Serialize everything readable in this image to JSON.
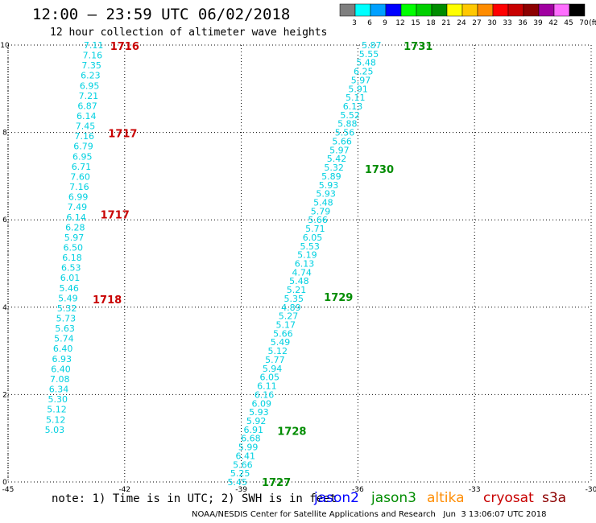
{
  "header": {
    "title": "12:00 — 23:59 UTC 06/02/2018",
    "subtitle": "12 hour collection of altimeter wave heights"
  },
  "colorbar": {
    "bins": [
      {
        "label": "3",
        "color": "#7f7f7f"
      },
      {
        "label": "6",
        "color": "#00ffff"
      },
      {
        "label": "9",
        "color": "#00a0ff"
      },
      {
        "label": "12",
        "color": "#0000ff"
      },
      {
        "label": "15",
        "color": "#00ff00"
      },
      {
        "label": "18",
        "color": "#00d000"
      },
      {
        "label": "21",
        "color": "#008c00"
      },
      {
        "label": "24",
        "color": "#ffff00"
      },
      {
        "label": "27",
        "color": "#ffc800"
      },
      {
        "label": "30",
        "color": "#ff8c00"
      },
      {
        "label": "33",
        "color": "#ff0000"
      },
      {
        "label": "36",
        "color": "#c80000"
      },
      {
        "label": "39",
        "color": "#8c0000"
      },
      {
        "label": "42",
        "color": "#a000a0"
      },
      {
        "label": "45",
        "color": "#ff6eff"
      },
      {
        "label": "70",
        "color": "#000000"
      }
    ],
    "unit": "(ft)"
  },
  "note": "note: 1) Time is in UTC; 2) SWH is in feet",
  "missions": [
    {
      "name": "jason2",
      "color": "#0000ff"
    },
    {
      "name": "jason3",
      "color": "#008c00"
    },
    {
      "name": "altika",
      "color": "#ff8c00"
    },
    {
      "name": "cryosat",
      "color": "#c80000"
    },
    {
      "name": "s3a",
      "color": "#8c0000"
    }
  ],
  "credit": "NOAA/NESDIS Center for Satellite Applications and Research   Jun  3 13:06:07 UTC 2018",
  "chart_data": {
    "type": "scatter",
    "xlim": [
      -45,
      -30
    ],
    "ylim": [
      0,
      10
    ],
    "x_ticks": [
      "-45",
      "-42",
      "-39",
      "-36",
      "-33",
      "-30"
    ],
    "y_ticks": [
      "0",
      "2",
      "4",
      "6",
      "8",
      "10"
    ],
    "grid": true,
    "label_color": "#00d0e0",
    "tracks": [
      {
        "id": "cryosat-track",
        "mission": "cryosat",
        "start": {
          "lon": -42.8,
          "lat": 10.0
        },
        "end": {
          "lon": -43.8,
          "lat": 1.2
        },
        "values": [
          "7.11",
          "7.16",
          "7.35",
          "6.23",
          "6.95",
          "7.21",
          "6.87",
          "6.14",
          "7.45",
          "7.16",
          "6.79",
          "6.95",
          "6.71",
          "7.60",
          "7.16",
          "6.99",
          "7.49",
          "6.14",
          "6.28",
          "5.97",
          "6.50",
          "6.18",
          "6.53",
          "6.01",
          "5.46",
          "5.49",
          "5.32",
          "5.73",
          "5.63",
          "5.74",
          "6.40",
          "6.93",
          "6.40",
          "7.08",
          "6.34",
          "5.30",
          "5.12",
          "5.12",
          "5.03"
        ],
        "times": [
          {
            "text": "1716",
            "lon": -42.0,
            "lat": 9.98
          },
          {
            "text": "1717",
            "lon": -42.05,
            "lat": 7.98
          },
          {
            "text": "1717",
            "lon": -42.25,
            "lat": 6.12
          },
          {
            "text": "1718",
            "lon": -42.45,
            "lat": 4.18
          }
        ]
      },
      {
        "id": "jason3-track",
        "mission": "jason3",
        "start": {
          "lon": -35.65,
          "lat": 10.0
        },
        "end": {
          "lon": -39.1,
          "lat": 0.0
        },
        "values": [
          "5.87",
          "5.55",
          "5.48",
          "6.25",
          "5.97",
          "5.91",
          "5.11",
          "6.13",
          "5.52",
          "5.88",
          "5.56",
          "5.66",
          "5.97",
          "5.42",
          "5.32",
          "5.89",
          "5.93",
          "5.93",
          "5.48",
          "5.79",
          "5.66",
          "5.71",
          "6.05",
          "5.53",
          "5.19",
          "6.13",
          "4.74",
          "5.48",
          "5.21",
          "5.35",
          "4.89",
          "5.27",
          "5.17",
          "5.66",
          "5.49",
          "5.12",
          "5.77",
          "5.94",
          "6.05",
          "6.11",
          "6.16",
          "6.09",
          "5.93",
          "5.92",
          "6.91",
          "6.68",
          "5.99",
          "6.41",
          "5.66",
          "5.25",
          "5.45"
        ],
        "times": [
          {
            "text": "1731",
            "lon": -34.45,
            "lat": 9.98
          },
          {
            "text": "1730",
            "lon": -35.45,
            "lat": 7.16
          },
          {
            "text": "1729",
            "lon": -36.5,
            "lat": 4.24
          },
          {
            "text": "1728",
            "lon": -37.7,
            "lat": 1.17
          },
          {
            "text": "1727",
            "lon": -38.1,
            "lat": 0.0
          }
        ]
      }
    ]
  }
}
